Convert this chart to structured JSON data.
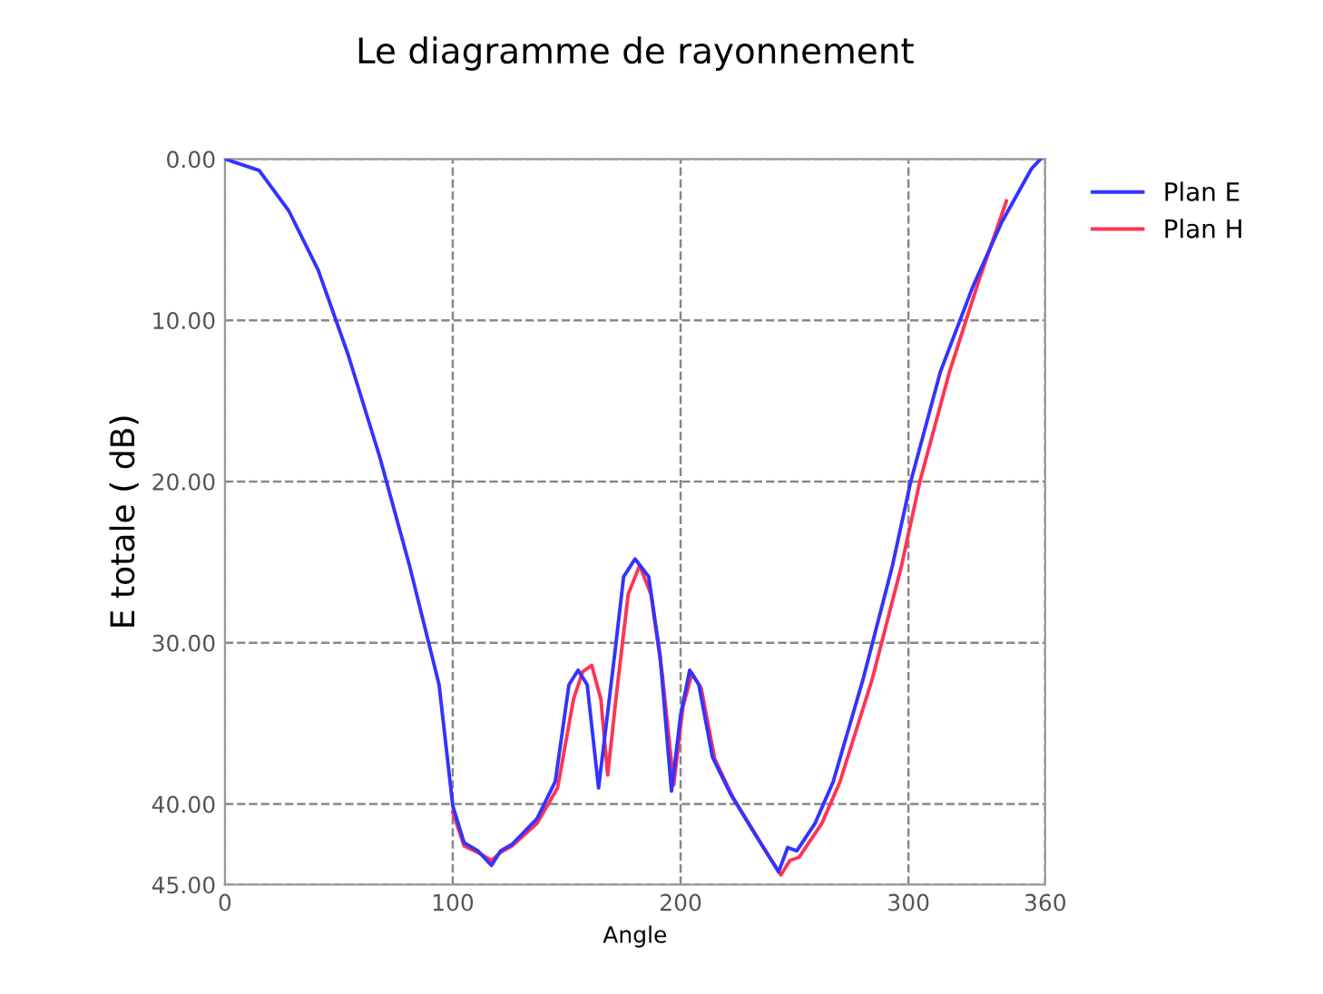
{
  "chart_data": {
    "type": "line",
    "title": "Le diagramme de rayonnement",
    "xlabel": "Angle",
    "ylabel": "E totale ( dB)",
    "xlim": [
      0,
      360
    ],
    "xticks": [
      0,
      100,
      200,
      300,
      360
    ],
    "ylim": [
      -45,
      0
    ],
    "yticks": [
      {
        "value": 0,
        "label": "0.00"
      },
      {
        "value": -10,
        "label": "10.00"
      },
      {
        "value": -20,
        "label": "20.00"
      },
      {
        "value": -30,
        "label": "30.00"
      },
      {
        "value": -40,
        "label": "40.00"
      },
      {
        "value": -45,
        "label": "45.00"
      }
    ],
    "grid": true,
    "legend": "top right",
    "marker": "none",
    "line_style": "solid",
    "series": [
      {
        "name": "Plan E",
        "color": "#3333ff",
        "x": [
          0,
          15,
          28,
          41,
          54,
          68,
          81,
          94,
          100,
          105,
          111,
          117,
          121,
          126,
          137,
          145,
          151,
          155,
          159,
          164,
          171,
          175,
          180,
          186,
          191,
          196,
          200,
          204,
          208,
          214,
          222,
          235,
          243,
          247,
          251,
          259,
          267,
          280,
          293,
          301,
          314,
          328,
          341,
          354,
          358
        ],
        "values": [
          0,
          -0.7,
          -3.2,
          -6.9,
          -12.1,
          -18.5,
          -25.2,
          -32.6,
          -40.1,
          -42.4,
          -42.9,
          -43.8,
          -42.9,
          -42.5,
          -40.9,
          -38.6,
          -32.6,
          -31.7,
          -32.6,
          -39,
          -30.8,
          -25.9,
          -24.8,
          -25.9,
          -30.8,
          -39.2,
          -34.5,
          -31.7,
          -32.6,
          -37.1,
          -39.4,
          -42.4,
          -44.2,
          -42.7,
          -42.9,
          -41.2,
          -38.6,
          -32.3,
          -25.2,
          -20,
          -13.2,
          -8,
          -3.9,
          -0.6,
          0
        ]
      },
      {
        "name": "Plan H",
        "color": "#ff3355",
        "x": [
          100,
          105,
          111,
          117,
          121,
          126,
          137,
          146,
          153,
          157,
          161,
          165,
          168,
          172,
          177,
          182,
          187,
          192,
          197,
          201,
          205,
          209,
          215,
          223,
          236,
          244,
          248,
          252,
          262,
          270,
          284,
          297,
          305,
          318,
          331,
          343
        ],
        "values": [
          -40.5,
          -42.6,
          -43,
          -43.5,
          -43,
          -42.6,
          -41.2,
          -39,
          -33.5,
          -31.8,
          -31.4,
          -33.5,
          -38.2,
          -33,
          -27,
          -25.2,
          -27,
          -32,
          -38.8,
          -34,
          -31.9,
          -32.8,
          -37.2,
          -39.6,
          -42.6,
          -44.4,
          -43.5,
          -43.3,
          -41.2,
          -38.6,
          -32.3,
          -25.2,
          -20,
          -13.2,
          -7.5,
          -2.6
        ]
      }
    ]
  }
}
